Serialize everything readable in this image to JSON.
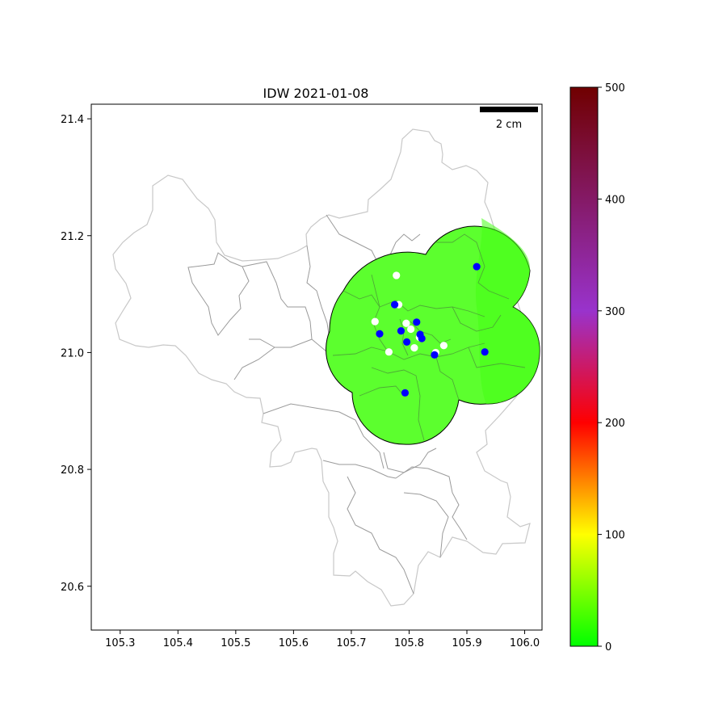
{
  "map": {
    "title": "IDW 2021-01-08",
    "scale_bar_label": "2 cm",
    "x_ticks": [
      "105.3",
      "105.4",
      "105.5",
      "105.6",
      "105.7",
      "105.8",
      "105.9",
      "106.0"
    ],
    "y_ticks": [
      "21.4",
      "21.2",
      "21.0",
      "20.8",
      "20.6"
    ],
    "colorbar_ticks": [
      "500",
      "400",
      "300",
      "200",
      "100",
      "0"
    ],
    "colorbar_colors": [
      "#00ff00",
      "#ffff00",
      "#ff0000",
      "#9933cc",
      "#700000"
    ]
  },
  "chart_data": {
    "type": "map",
    "title": "IDW 2021-01-08",
    "xlim": [
      105.25,
      106.03
    ],
    "ylim": [
      20.525,
      21.425
    ],
    "colorbar": {
      "min": 0,
      "max": 500,
      "ticks": [
        0,
        100,
        200,
        300,
        400,
        500
      ]
    },
    "idw_field_color": "#5cff2e",
    "monitoring_stations_blue": [
      [
        105.917,
        21.147
      ],
      [
        105.775,
        21.082
      ],
      [
        105.813,
        21.052
      ],
      [
        105.749,
        21.032
      ],
      [
        105.786,
        21.037
      ],
      [
        105.819,
        21.031
      ],
      [
        105.822,
        21.024
      ],
      [
        105.796,
        21.018
      ],
      [
        105.844,
        20.996
      ],
      [
        105.931,
        21.001
      ],
      [
        105.793,
        20.931
      ]
    ],
    "other_points_white": [
      [
        105.778,
        21.132
      ],
      [
        105.782,
        21.082
      ],
      [
        105.741,
        21.053
      ],
      [
        105.795,
        21.05
      ],
      [
        105.803,
        21.04
      ],
      [
        105.818,
        21.026
      ],
      [
        105.809,
        21.008
      ],
      [
        105.765,
        21.001
      ],
      [
        105.86,
        21.012
      ],
      [
        105.846,
        21.0
      ]
    ]
  }
}
